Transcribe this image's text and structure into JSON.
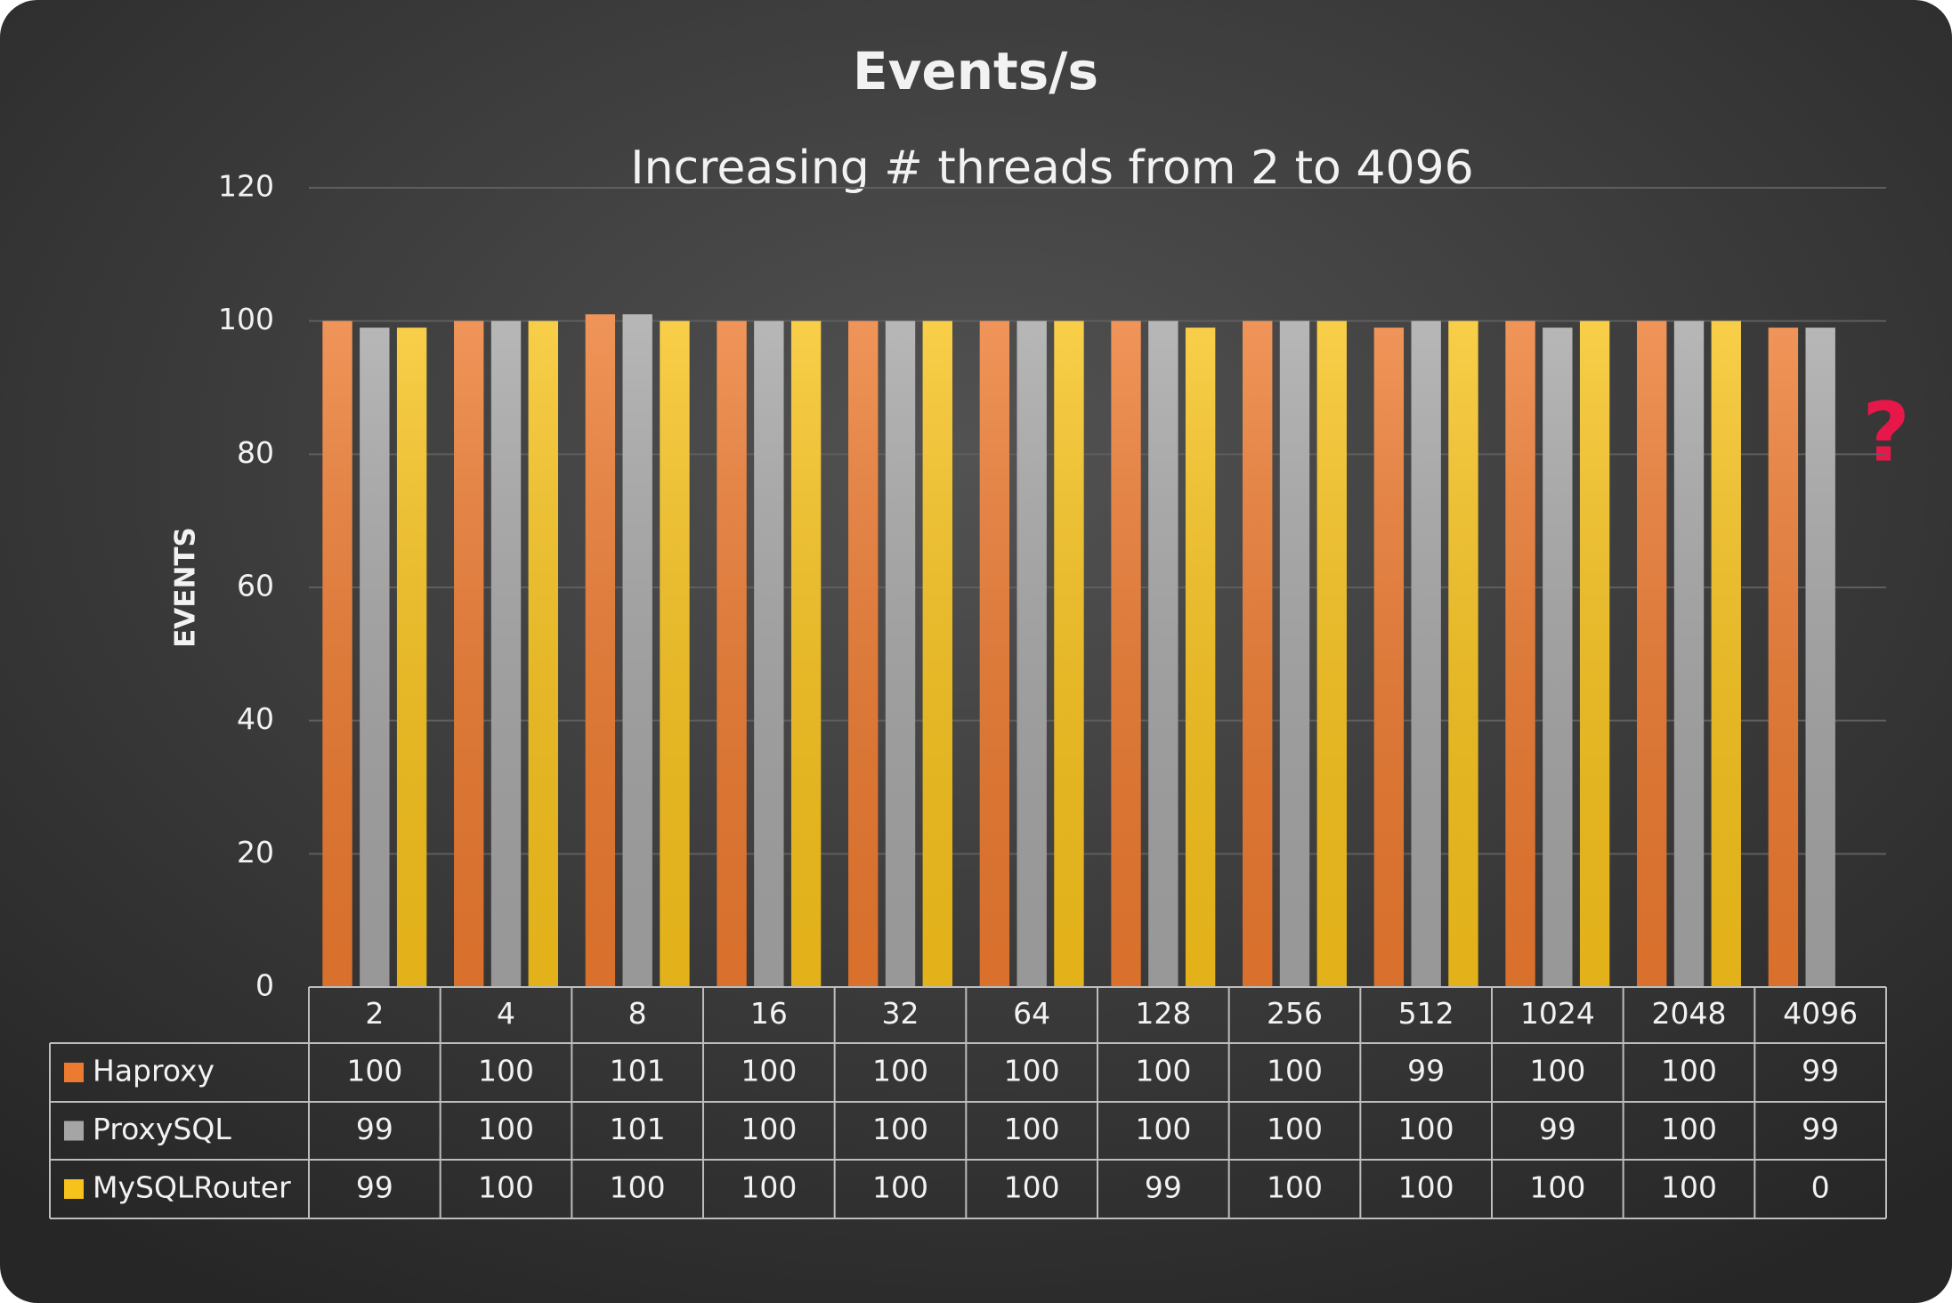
{
  "chart_data": {
    "type": "bar",
    "title": "Events/s",
    "subtitle": "Increasing # threads from 2 to 4096",
    "y_label": "EVENTS",
    "categories": [
      "2",
      "4",
      "8",
      "16",
      "32",
      "64",
      "128",
      "256",
      "512",
      "1024",
      "2048",
      "4096"
    ],
    "series": [
      {
        "name": "Haproxy",
        "color": "#ec7a30",
        "values": [
          100,
          100,
          101,
          100,
          100,
          100,
          100,
          100,
          99,
          100,
          100,
          99
        ]
      },
      {
        "name": "ProxySQL",
        "color": "#a5a5a5",
        "values": [
          99,
          100,
          101,
          100,
          100,
          100,
          100,
          100,
          100,
          99,
          100,
          99
        ]
      },
      {
        "name": "MySQLRouter",
        "color": "#f7c21c",
        "values": [
          99,
          100,
          100,
          100,
          100,
          100,
          99,
          100,
          100,
          100,
          100,
          0
        ]
      }
    ],
    "ylim": [
      0,
      120
    ],
    "yticks": [
      0,
      20,
      40,
      60,
      80,
      100,
      120
    ],
    "grid": true,
    "annotation": {
      "text": "?",
      "color": "#e8174a"
    }
  }
}
